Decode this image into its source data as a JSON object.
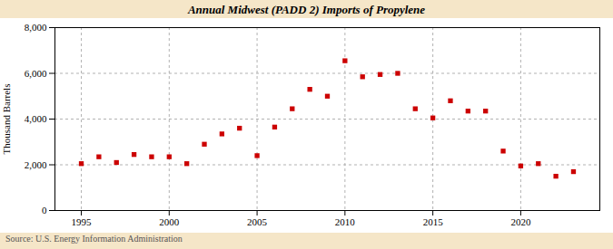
{
  "chart_data": {
    "type": "scatter",
    "title": "Annual Midwest (PADD 2) Imports of Propylene",
    "ylabel": "Thousand Barrels",
    "source": "Source: U.S. Energy Information Administration",
    "x": [
      1995,
      1996,
      1997,
      1998,
      1999,
      2000,
      2001,
      2002,
      2003,
      2004,
      2005,
      2006,
      2007,
      2008,
      2009,
      2010,
      2011,
      2012,
      2013,
      2014,
      2015,
      2016,
      2017,
      2018,
      2019,
      2020,
      2021,
      2022,
      2023
    ],
    "values": [
      2050,
      2350,
      2100,
      2450,
      2350,
      2350,
      2050,
      2900,
      3350,
      3600,
      2400,
      3650,
      4450,
      5300,
      5000,
      6550,
      5850,
      5950,
      6000,
      4450,
      4050,
      4800,
      4350,
      4350,
      2600,
      1950,
      2050,
      1500,
      1700
    ],
    "color": "#cc0000",
    "marker": "square",
    "xlim": [
      1993.5,
      2024.5
    ],
    "ylim": [
      0,
      8000
    ],
    "xticks": [
      1995,
      2000,
      2005,
      2010,
      2015,
      2020
    ],
    "yticks": [
      0,
      {
        "value": 2000,
        "label": "2,000"
      },
      {
        "value": 4000,
        "label": "4,000"
      },
      {
        "value": 6000,
        "label": "6,000"
      },
      {
        "value": 8000,
        "label": "8,000"
      }
    ],
    "grid": true
  }
}
